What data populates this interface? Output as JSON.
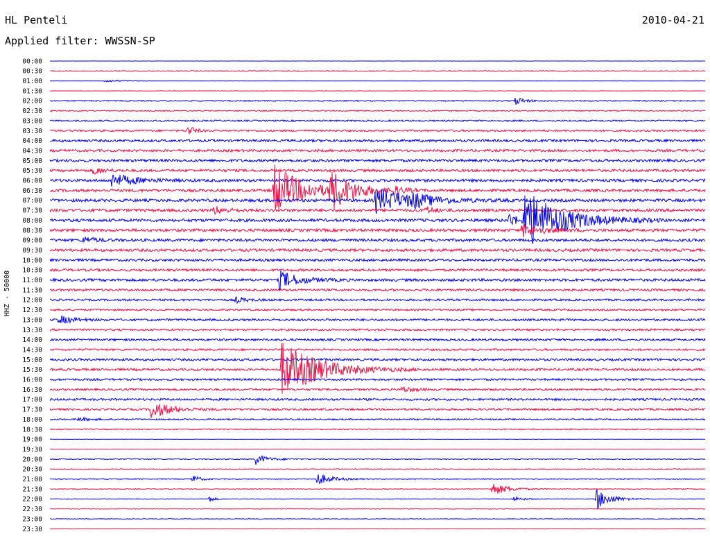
{
  "header": {
    "station": "HL Penteli",
    "date": "2010-04-21",
    "filter_label": "Applied filter: WWSSN-SP"
  },
  "chart_data": {
    "type": "line",
    "title": "HL Penteli",
    "date": "2010-04-21",
    "filter": "WWSSN-SP",
    "ylabel": "HHZ - 50000",
    "row_labels": [
      "00:00",
      "00:30",
      "01:00",
      "01:30",
      "02:00",
      "02:30",
      "03:00",
      "03:30",
      "04:00",
      "04:30",
      "05:00",
      "05:30",
      "06:00",
      "06:30",
      "07:00",
      "07:30",
      "08:00",
      "08:30",
      "09:00",
      "09:30",
      "10:00",
      "10:30",
      "11:00",
      "11:30",
      "12:00",
      "12:30",
      "13:00",
      "13:30",
      "14:00",
      "14:30",
      "15:00",
      "15:30",
      "16:00",
      "16:30",
      "17:00",
      "17:30",
      "18:00",
      "18:30",
      "19:00",
      "19:30",
      "20:00",
      "20:30",
      "21:00",
      "21:30",
      "22:00",
      "22:30",
      "23:00",
      "23:30"
    ],
    "row_minutes": 30,
    "colors": [
      "#0000ee",
      "#ee1144"
    ],
    "grid": false,
    "noise_level": [
      0.3,
      1.2,
      0.3,
      0.4,
      1.5,
      1.5,
      2.0,
      2.4,
      3.2,
      3.2,
      3.4,
      3.4,
      3.6,
      3.6,
      3.8,
      3.8,
      3.8,
      3.8,
      3.6,
      3.6,
      3.2,
      3.2,
      3.4,
      3.0,
      2.6,
      2.4,
      2.8,
      2.6,
      2.8,
      2.6,
      3.0,
      3.0,
      2.6,
      2.6,
      2.8,
      2.6,
      1.8,
      1.5,
      0.5,
      0.5,
      1.2,
      1.0,
      1.2,
      1.0,
      0.8,
      0.7,
      0.8,
      0.4
    ],
    "events": [
      {
        "row": 2,
        "minute": 2.5,
        "amp": 2.5,
        "dur": 0.6
      },
      {
        "row": 4,
        "minute": 21.3,
        "amp": 6,
        "dur": 0.4
      },
      {
        "row": 7,
        "minute": 6.3,
        "amp": 8,
        "dur": 0.3
      },
      {
        "row": 11,
        "minute": 2.0,
        "amp": 6,
        "dur": 0.4
      },
      {
        "row": 12,
        "minute": 2.8,
        "amp": 10,
        "dur": 1.0
      },
      {
        "row": 13,
        "minute": 10.2,
        "amp": 40,
        "dur": 1.2
      },
      {
        "row": 13,
        "minute": 12.8,
        "amp": 28,
        "dur": 1.0
      },
      {
        "row": 13,
        "minute": 15.6,
        "amp": 6,
        "dur": 0.5
      },
      {
        "row": 14,
        "minute": 14.9,
        "amp": 18,
        "dur": 1.6
      },
      {
        "row": 14,
        "minute": 16.6,
        "amp": 7,
        "dur": 0.6
      },
      {
        "row": 15,
        "minute": 7.5,
        "amp": 6,
        "dur": 0.5
      },
      {
        "row": 15,
        "minute": 17.2,
        "amp": 5,
        "dur": 0.4
      },
      {
        "row": 16,
        "minute": 21.0,
        "amp": 10,
        "dur": 0.4
      },
      {
        "row": 16,
        "minute": 21.7,
        "amp": 44,
        "dur": 1.6
      },
      {
        "row": 17,
        "minute": 21.6,
        "amp": 10,
        "dur": 0.8
      },
      {
        "row": 18,
        "minute": 1.5,
        "amp": 5,
        "dur": 0.5
      },
      {
        "row": 22,
        "minute": 10.5,
        "amp": 14,
        "dur": 0.8
      },
      {
        "row": 24,
        "minute": 8.5,
        "amp": 4,
        "dur": 0.5
      },
      {
        "row": 26,
        "minute": 0.4,
        "amp": 6,
        "dur": 0.6
      },
      {
        "row": 31,
        "minute": 10.6,
        "amp": 40,
        "dur": 1.6
      },
      {
        "row": 33,
        "minute": 16.1,
        "amp": 5,
        "dur": 0.5
      },
      {
        "row": 35,
        "minute": 4.6,
        "amp": 14,
        "dur": 0.8
      },
      {
        "row": 36,
        "minute": 1.3,
        "amp": 3,
        "dur": 0.5
      },
      {
        "row": 40,
        "minute": 9.4,
        "amp": 8,
        "dur": 0.5
      },
      {
        "row": 42,
        "minute": 6.5,
        "amp": 7,
        "dur": 0.3
      },
      {
        "row": 42,
        "minute": 12.2,
        "amp": 9,
        "dur": 0.6
      },
      {
        "row": 43,
        "minute": 20.2,
        "amp": 10,
        "dur": 0.7
      },
      {
        "row": 44,
        "minute": 7.3,
        "amp": 5,
        "dur": 0.2
      },
      {
        "row": 44,
        "minute": 21.2,
        "amp": 4,
        "dur": 0.4
      },
      {
        "row": 44,
        "minute": 25.0,
        "amp": 16,
        "dur": 0.6
      }
    ]
  }
}
